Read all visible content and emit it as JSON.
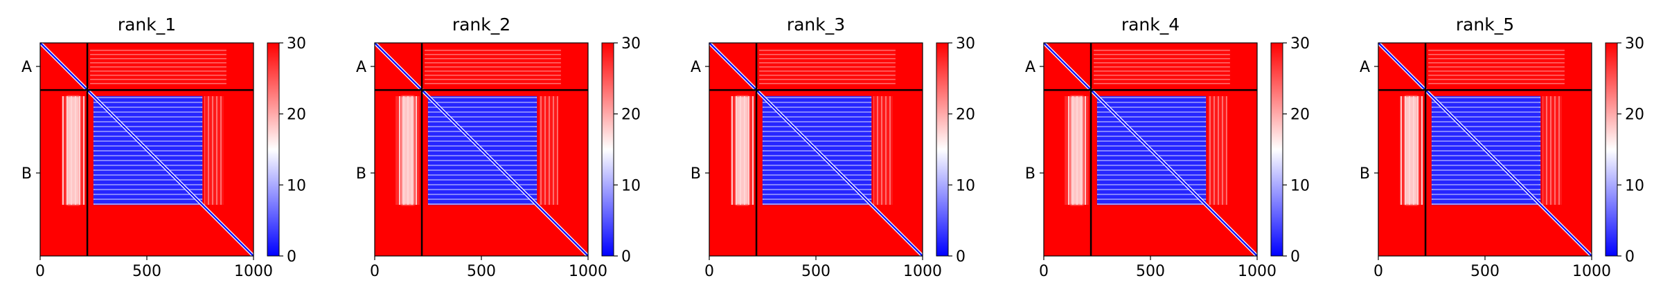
{
  "chart_data": {
    "type": "heatmap",
    "colormap": {
      "low": "#0000ff",
      "mid": "#ffffff",
      "high": "#ff0000",
      "vmin": 0,
      "vmax": 30
    },
    "colorbar": {
      "ticks": [
        0,
        10,
        20,
        30
      ]
    },
    "x_ticks": [
      0,
      500,
      1000
    ],
    "x_range": [
      0,
      1000
    ],
    "chains": [
      {
        "name": "A",
        "start": 0,
        "end": 221
      },
      {
        "name": "B",
        "start": 221,
        "end": 1000
      }
    ],
    "chain_boundary": 221,
    "panels": [
      {
        "title": "rank_1"
      },
      {
        "title": "rank_2"
      },
      {
        "title": "rank_3"
      },
      {
        "title": "rank_4"
      },
      {
        "title": "rank_5"
      }
    ]
  }
}
